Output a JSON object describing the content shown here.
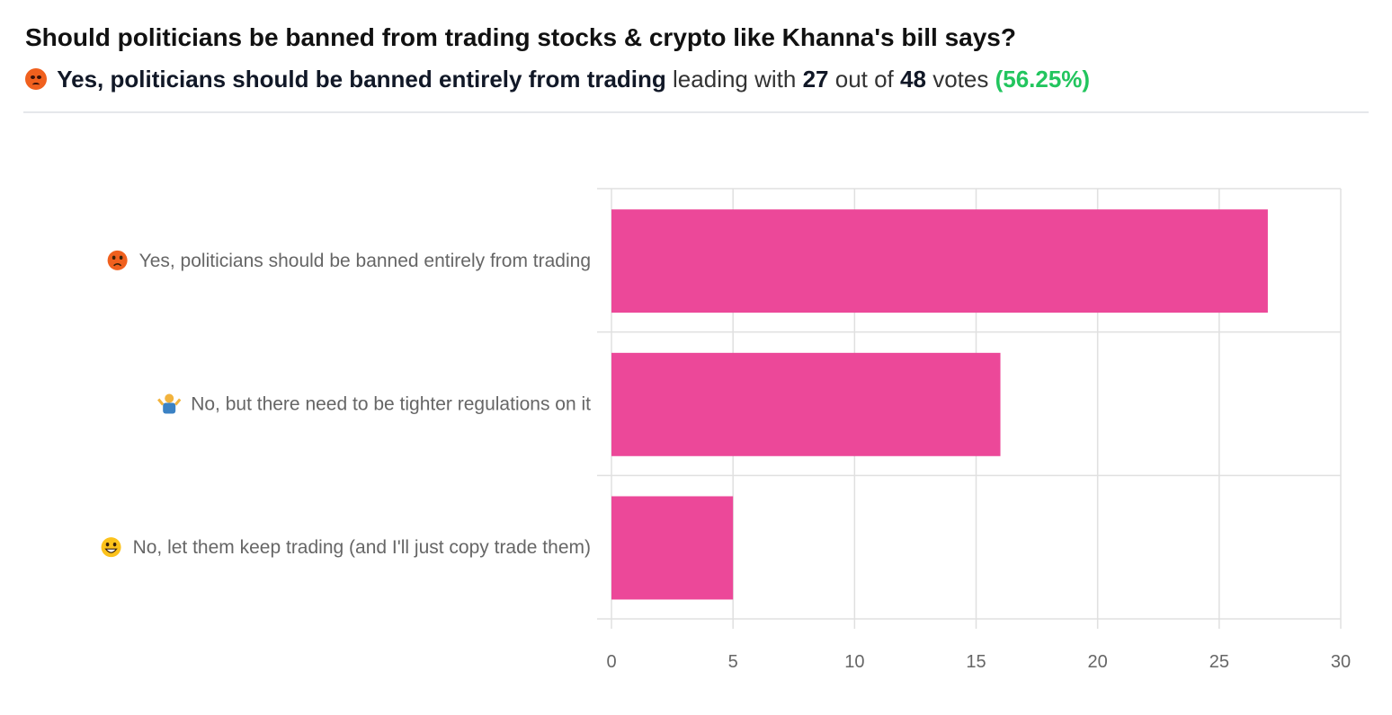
{
  "header": {
    "title": "Should politicians be banned from trading stocks & crypto like Khanna's bill says?",
    "leader_emoji": "pouting-face-icon",
    "leader_label": "Yes, politicians should be banned entirely from trading",
    "leading_with_text": "leading with",
    "leader_votes": "27",
    "out_of_text": "out of",
    "total_votes": "48",
    "votes_text": "votes",
    "leader_percent": "(56.25%)"
  },
  "colors": {
    "bar": "#ec4899",
    "percent": "#22c55e",
    "grid": "#e0e0e0",
    "label": "#666666"
  },
  "chart_data": {
    "type": "bar",
    "orientation": "horizontal",
    "categories": [
      "Yes, politicians should be banned entirely from trading",
      "No, but there need to be tighter regulations on it",
      "No, let them keep trading (and I'll just copy trade them)"
    ],
    "category_icons": [
      "pouting-face-icon",
      "person-shrugging-icon",
      "grinning-face-icon"
    ],
    "values": [
      27,
      16,
      5
    ],
    "xlim": [
      0,
      30
    ],
    "xticks": [
      0,
      5,
      10,
      15,
      20,
      25,
      30
    ],
    "grid": true,
    "title": "",
    "xlabel": "",
    "ylabel": ""
  }
}
